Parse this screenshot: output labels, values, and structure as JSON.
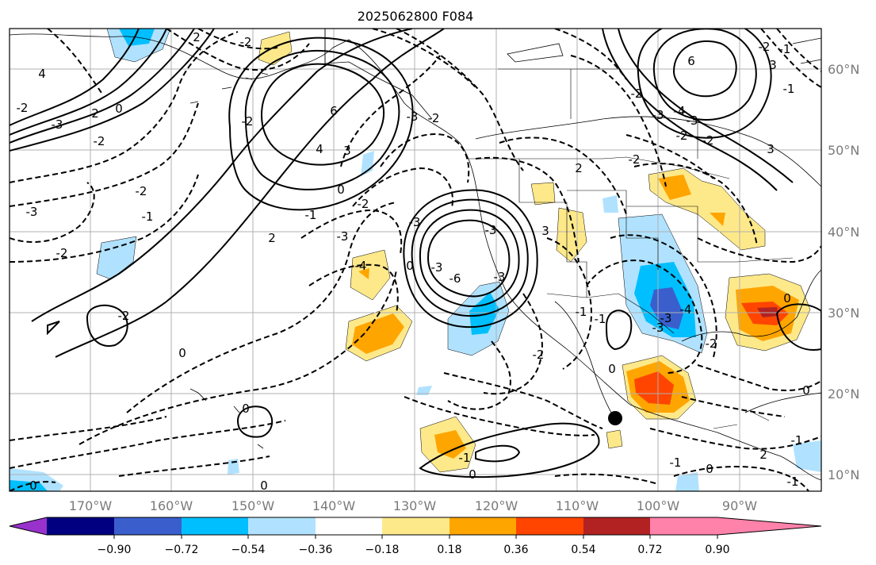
{
  "title": "2025062800 F084",
  "map": {
    "lon_labels": [
      "170°W",
      "160°W",
      "150°W",
      "140°W",
      "130°W",
      "120°W",
      "110°W",
      "100°W",
      "90°W"
    ],
    "lat_labels": [
      "60°N",
      "50°N",
      "40°N",
      "30°N",
      "20°N",
      "10°N"
    ],
    "contour_labels": [
      "-2",
      "2",
      "2",
      "-2",
      "4",
      "6",
      "-3",
      "-2",
      "0",
      "3",
      "6",
      "4",
      "3",
      "-1",
      "-2",
      "-2",
      "-3",
      "-2",
      "2",
      "-4",
      "-3",
      "-2",
      "-1",
      "0",
      "-2",
      "-3",
      "-2",
      "-3",
      "0",
      "-3",
      "-6",
      "-3",
      "-3",
      "2",
      "3",
      "-2",
      "-1",
      "-1",
      "0",
      "0",
      "0",
      "-1",
      "0",
      "0",
      "3",
      "-2",
      "-1",
      "-2",
      "-2",
      "-3",
      "-4",
      "-3",
      "-2",
      "-1",
      "-2",
      "-3",
      "-4",
      "-3",
      "-1",
      "0",
      "2",
      "-1",
      "0",
      "0",
      "-2",
      "0",
      "-1"
    ]
  },
  "colorbar": {
    "tick_labels": [
      "−0.90",
      "−0.72",
      "−0.54",
      "−0.36",
      "−0.18",
      "0.18",
      "0.36",
      "0.54",
      "0.72",
      "0.90"
    ],
    "colors": [
      "#9932cc",
      "#000080",
      "#3a5fcd",
      "#00bfff",
      "#b0e2ff",
      "#ffffff",
      "#fee98a",
      "#ffa500",
      "#ff4500",
      "#b22222",
      "#ff82ab"
    ]
  }
}
